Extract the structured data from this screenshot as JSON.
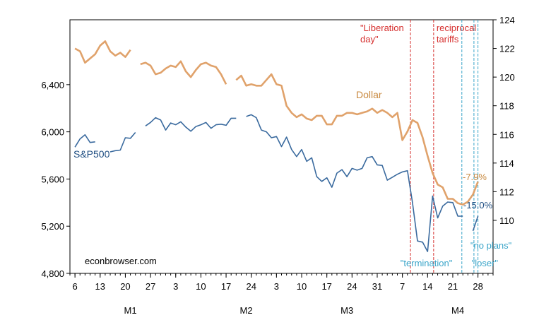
{
  "chart_data": {
    "type": "line",
    "title": "",
    "left_axis": {
      "ticks": [
        4800,
        5200,
        5600,
        6000,
        6400
      ],
      "tick_labels": [
        "4,800",
        "5,200",
        "5,600",
        "6,000",
        "6,400"
      ],
      "range": [
        4800,
        6950
      ]
    },
    "right_axis": {
      "ticks": [
        110,
        112,
        114,
        116,
        118,
        120,
        122,
        124
      ],
      "tick_labels": [
        "110",
        "112",
        "114",
        "116",
        "118",
        "120",
        "122",
        "124"
      ],
      "range": [
        106.3,
        124
      ]
    },
    "x_axis": {
      "day_labels": [
        "6",
        "13",
        "20",
        "27",
        "3",
        "10",
        "17",
        "24",
        "3",
        "10",
        "17",
        "24",
        "31",
        "7",
        "14",
        "21",
        "28"
      ],
      "month_labels": [
        "M1",
        "M2",
        "M3",
        "M4"
      ]
    },
    "series": [
      {
        "name": "S&P500",
        "axis": "left",
        "color": "#3a6a9e",
        "values": [
          [
            1,
            5870
          ],
          [
            2,
            5940
          ],
          [
            3,
            5975
          ],
          [
            4,
            5910
          ],
          [
            5,
            5915
          ],
          null,
          null,
          [
            8,
            5830
          ],
          [
            9,
            5840
          ],
          [
            10,
            5845
          ],
          [
            11,
            5950
          ],
          [
            12,
            5945
          ],
          [
            13,
            5995
          ],
          null,
          [
            15,
            6050
          ],
          [
            16,
            6080
          ],
          [
            17,
            6120
          ],
          [
            18,
            6100
          ],
          [
            19,
            6015
          ],
          [
            20,
            6075
          ],
          [
            21,
            6060
          ],
          [
            22,
            6085
          ],
          [
            23,
            6040
          ],
          [
            24,
            6005
          ],
          [
            25,
            6045
          ],
          [
            26,
            6060
          ],
          [
            27,
            6080
          ],
          [
            28,
            6030
          ],
          [
            29,
            6060
          ],
          [
            30,
            6065
          ],
          [
            31,
            6055
          ],
          [
            32,
            6115
          ],
          [
            33,
            6115
          ],
          null,
          [
            35,
            6130
          ],
          [
            36,
            6145
          ],
          [
            37,
            6120
          ],
          [
            38,
            6015
          ],
          [
            39,
            6000
          ],
          [
            40,
            5950
          ],
          [
            41,
            5960
          ],
          [
            42,
            5875
          ],
          [
            43,
            5955
          ],
          [
            44,
            5850
          ],
          [
            45,
            5790
          ],
          [
            46,
            5850
          ],
          [
            47,
            5750
          ],
          [
            48,
            5780
          ],
          [
            49,
            5620
          ],
          [
            50,
            5580
          ],
          [
            51,
            5610
          ],
          [
            52,
            5530
          ],
          [
            53,
            5650
          ],
          [
            54,
            5680
          ],
          [
            55,
            5620
          ],
          [
            56,
            5690
          ],
          [
            57,
            5675
          ],
          [
            58,
            5690
          ],
          [
            59,
            5780
          ],
          [
            60,
            5790
          ],
          [
            61,
            5720
          ],
          [
            62,
            5715
          ],
          [
            63,
            5590
          ],
          [
            64,
            5615
          ],
          [
            65,
            5640
          ],
          [
            66,
            5660
          ],
          [
            67,
            5670
          ],
          [
            68,
            5400
          ],
          [
            69,
            5075
          ],
          [
            70,
            5065
          ],
          [
            71,
            4985
          ],
          [
            72,
            5455
          ],
          [
            73,
            5270
          ],
          [
            74,
            5370
          ],
          [
            75,
            5405
          ],
          [
            76,
            5400
          ],
          [
            77,
            5285
          ],
          [
            78,
            5285
          ],
          null,
          [
            80,
            5160
          ],
          [
            81,
            5285
          ]
        ]
      },
      {
        "name": "Dollar",
        "axis": "right",
        "color": "#e0a26b",
        "values": [
          [
            1,
            122.0
          ],
          [
            2,
            121.8
          ],
          [
            3,
            121.0
          ],
          [
            4,
            121.3
          ],
          [
            5,
            121.6
          ],
          [
            6,
            122.2
          ],
          [
            7,
            122.5
          ],
          [
            8,
            121.8
          ],
          [
            9,
            121.5
          ],
          [
            10,
            121.7
          ],
          [
            11,
            121.4
          ],
          [
            12,
            121.9
          ],
          null,
          [
            14,
            120.9
          ],
          [
            15,
            121.0
          ],
          [
            16,
            120.8
          ],
          [
            17,
            120.2
          ],
          [
            18,
            120.3
          ],
          [
            19,
            120.6
          ],
          [
            20,
            120.8
          ],
          [
            21,
            120.7
          ],
          [
            22,
            121.1
          ],
          [
            23,
            120.4
          ],
          [
            24,
            120.0
          ],
          [
            25,
            120.5
          ],
          [
            26,
            120.9
          ],
          [
            27,
            121.0
          ],
          [
            28,
            120.8
          ],
          [
            29,
            120.7
          ],
          [
            30,
            120.2
          ],
          [
            31,
            119.5
          ],
          null,
          [
            33,
            119.8
          ],
          [
            34,
            120.1
          ],
          [
            35,
            119.4
          ],
          [
            36,
            119.5
          ],
          [
            37,
            119.4
          ],
          [
            38,
            119.4
          ],
          [
            39,
            119.8
          ],
          [
            40,
            120.2
          ],
          [
            41,
            119.5
          ],
          [
            42,
            119.4
          ],
          [
            43,
            118.0
          ],
          [
            44,
            117.5
          ],
          [
            45,
            117.2
          ],
          [
            46,
            117.4
          ],
          [
            47,
            117.1
          ],
          [
            48,
            117.0
          ],
          [
            49,
            117.3
          ],
          [
            50,
            117.3
          ],
          [
            51,
            116.7
          ],
          [
            52,
            116.7
          ],
          [
            53,
            117.3
          ],
          [
            54,
            117.3
          ],
          [
            55,
            117.5
          ],
          [
            56,
            117.5
          ],
          [
            57,
            117.4
          ],
          [
            58,
            117.5
          ],
          [
            59,
            117.6
          ],
          [
            60,
            117.8
          ],
          [
            61,
            117.5
          ],
          [
            62,
            117.7
          ],
          [
            63,
            117.5
          ],
          [
            64,
            117.2
          ],
          [
            65,
            117.5
          ],
          [
            66,
            115.6
          ],
          [
            67,
            116.2
          ],
          [
            68,
            117.0
          ],
          [
            69,
            116.8
          ],
          [
            70,
            115.8
          ],
          [
            71,
            114.5
          ],
          [
            72,
            113.3
          ],
          [
            73,
            112.5
          ],
          [
            74,
            112.3
          ],
          [
            75,
            111.5
          ],
          [
            76,
            111.5
          ],
          [
            77,
            111.2
          ],
          [
            78,
            111.1
          ],
          [
            79,
            111.3
          ],
          [
            80,
            111.8
          ],
          [
            81,
            112.7
          ]
        ]
      }
    ],
    "event_lines": [
      {
        "x": 67.6,
        "color": "#d6302f",
        "label": "\"Liberation\nday\""
      },
      {
        "x": 72.2,
        "color": "#d6302f",
        "label": "reciprocal\ntariffs"
      },
      {
        "x": 77.8,
        "color": "#3aa5c9",
        "label": "\"termination\""
      },
      {
        "x": 80.2,
        "color": "#3aa5c9",
        "label": "\"no plans\""
      },
      {
        "x": 81.0,
        "color": "#3aa5c9",
        "label": "\"loser\""
      }
    ],
    "end_labels": {
      "dollar": "-7.9%",
      "sp500": "-15.0%"
    },
    "series_labels": {
      "sp500": "S&P500",
      "dollar": "Dollar"
    },
    "watermark": "econbrowser.com"
  }
}
